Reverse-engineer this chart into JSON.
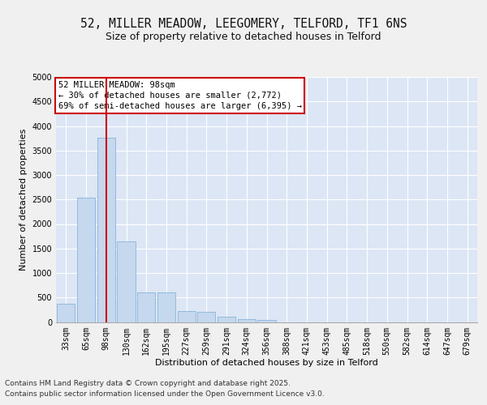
{
  "title_line1": "52, MILLER MEADOW, LEEGOMERY, TELFORD, TF1 6NS",
  "title_line2": "Size of property relative to detached houses in Telford",
  "xlabel": "Distribution of detached houses by size in Telford",
  "ylabel": "Number of detached properties",
  "categories": [
    "33sqm",
    "65sqm",
    "98sqm",
    "130sqm",
    "162sqm",
    "195sqm",
    "227sqm",
    "259sqm",
    "291sqm",
    "324sqm",
    "356sqm",
    "388sqm",
    "421sqm",
    "453sqm",
    "485sqm",
    "518sqm",
    "550sqm",
    "582sqm",
    "614sqm",
    "647sqm",
    "679sqm"
  ],
  "values": [
    375,
    2540,
    3760,
    1640,
    610,
    610,
    215,
    210,
    100,
    65,
    45,
    0,
    0,
    0,
    0,
    0,
    0,
    0,
    0,
    0,
    0
  ],
  "bar_color": "#c5d8ee",
  "bar_edge_color": "#7aadd4",
  "vline_x": 2,
  "vline_color": "#cc0000",
  "annotation_text": "52 MILLER MEADOW: 98sqm\n← 30% of detached houses are smaller (2,772)\n69% of semi-detached houses are larger (6,395) →",
  "annotation_box_color": "#cc0000",
  "annotation_bg": "#ffffff",
  "ylim": [
    0,
    5000
  ],
  "yticks": [
    0,
    500,
    1000,
    1500,
    2000,
    2500,
    3000,
    3500,
    4000,
    4500,
    5000
  ],
  "plot_bg_color": "#dce6f5",
  "fig_bg_color": "#f0f0f0",
  "grid_color": "#ffffff",
  "footer_line1": "Contains HM Land Registry data © Crown copyright and database right 2025.",
  "footer_line2": "Contains public sector information licensed under the Open Government Licence v3.0.",
  "title1_fontsize": 10.5,
  "title2_fontsize": 9,
  "axis_label_fontsize": 8,
  "tick_fontsize": 7,
  "annot_fontsize": 7.5,
  "footer_fontsize": 6.5
}
